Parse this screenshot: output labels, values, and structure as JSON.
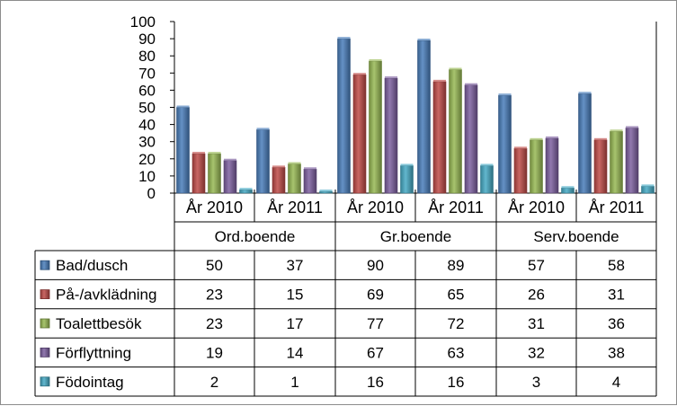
{
  "chart_data": {
    "type": "bar",
    "ylim": [
      0,
      100
    ],
    "yticks": [
      "0",
      "10",
      "20",
      "30",
      "40",
      "50",
      "60",
      "70",
      "80",
      "90",
      "100"
    ],
    "groups": [
      "Ord.boende",
      "Gr.boende",
      "Serv.boende"
    ],
    "categories": [
      "År 2010",
      "År 2011",
      "År 2010",
      "År 2011",
      "År 2010",
      "År 2011"
    ],
    "grid": false,
    "legend": "data-table-left",
    "series": [
      {
        "name": "Bad/dusch",
        "color": "#4a7ebb",
        "values": [
          50,
          37,
          90,
          89,
          57,
          58
        ]
      },
      {
        "name": "På-/avklädning",
        "color": "#be4b48",
        "values": [
          23,
          15,
          69,
          65,
          26,
          31
        ]
      },
      {
        "name": "Toalettbesök",
        "color": "#98b954",
        "values": [
          23,
          17,
          77,
          72,
          31,
          36
        ]
      },
      {
        "name": "Förflyttning",
        "color": "#7d60a0",
        "values": [
          19,
          14,
          67,
          63,
          32,
          38
        ]
      },
      {
        "name": "Födointag",
        "color": "#46aac5",
        "values": [
          2,
          1,
          16,
          16,
          3,
          4
        ]
      }
    ]
  }
}
